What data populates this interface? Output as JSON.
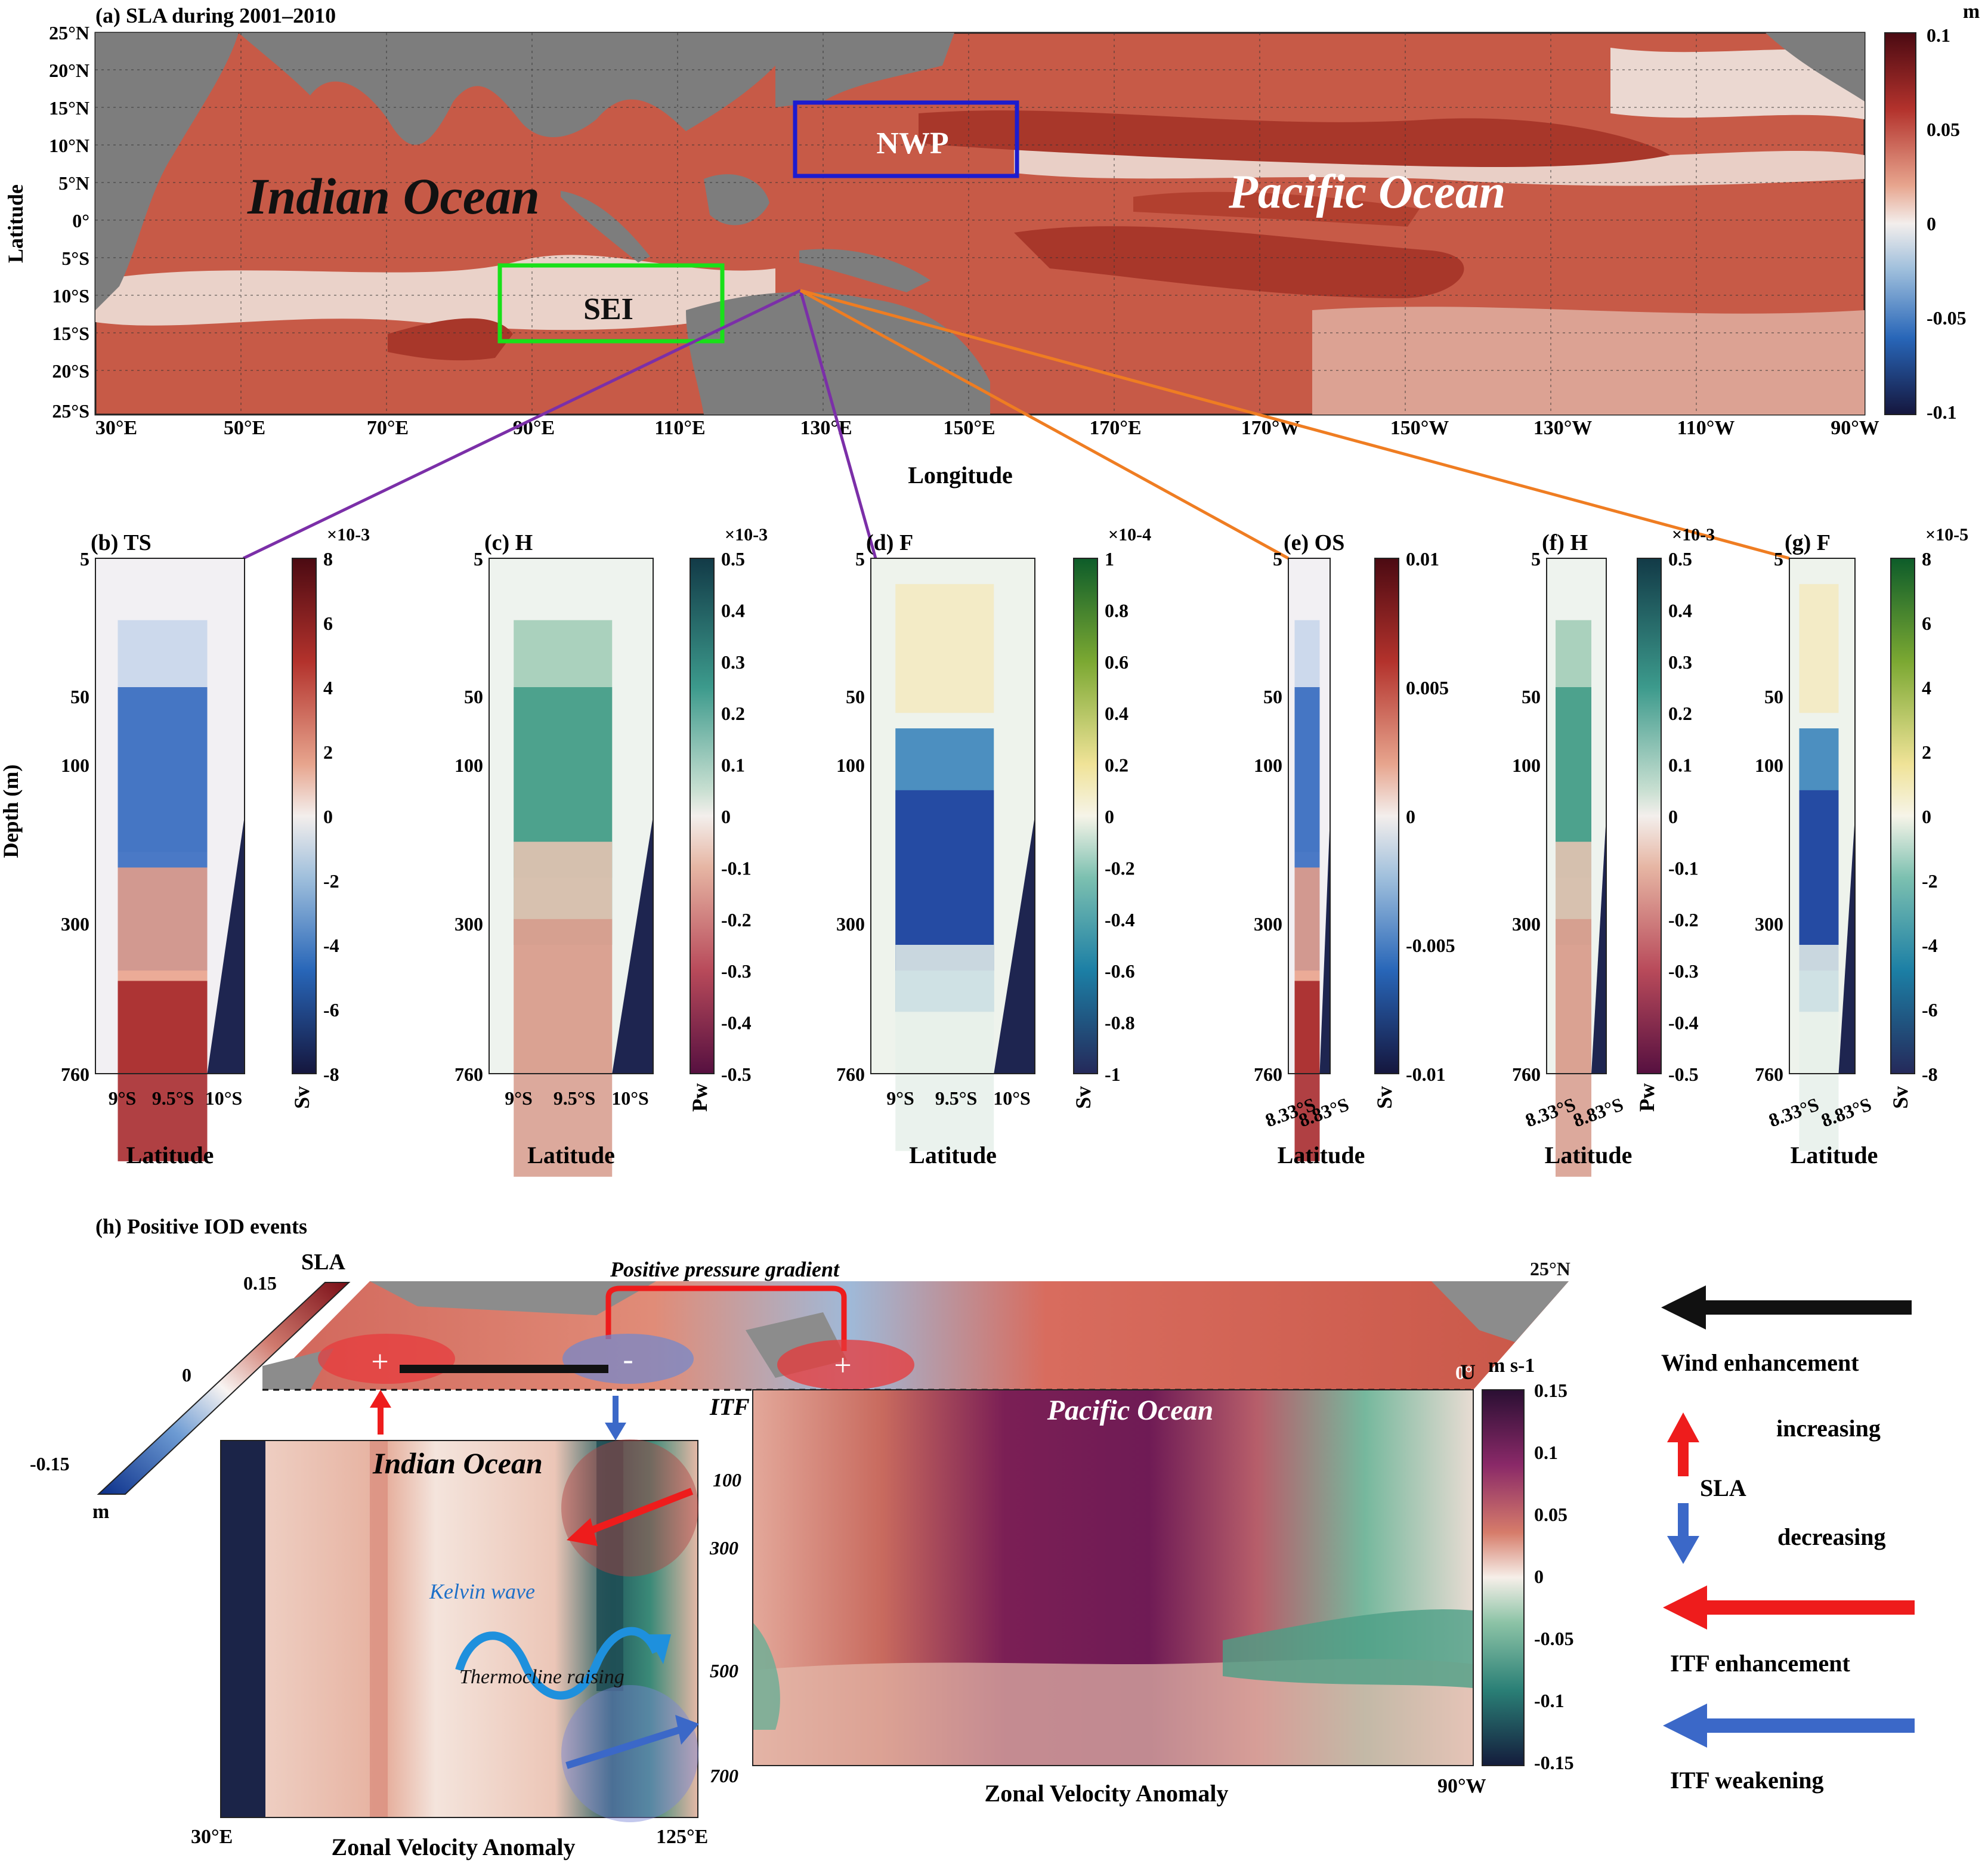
{
  "panel_a": {
    "title": "(a) SLA during 2001–2010",
    "xlabel": "Longitude",
    "ylabel": "Latitude",
    "lat_ticks": [
      "25°N",
      "20°N",
      "15°N",
      "10°N",
      "5°N",
      "0°",
      "5°S",
      "10°S",
      "15°S",
      "20°S",
      "25°S"
    ],
    "lon_ticks": [
      "30°E",
      "50°E",
      "70°E",
      "90°E",
      "110°E",
      "130°E",
      "150°E",
      "170°E",
      "170°W",
      "150°W",
      "130°W",
      "110°W",
      "90°W"
    ],
    "ocean_labels": [
      "Indian Ocean",
      "Pacific Ocean"
    ],
    "boxes": [
      {
        "label": "NWP",
        "lon": [
          125,
          155
        ],
        "lat": [
          6,
          16
        ],
        "color": "#1c1cd0"
      },
      {
        "label": "SEI",
        "lon": [
          85,
          116
        ],
        "lat": [
          -16,
          -6
        ],
        "color": "#19e019"
      }
    ],
    "colorbar": {
      "unit": "m",
      "ticks": [
        "0.1",
        "0.05",
        "0",
        "-0.05",
        "-0.1"
      ],
      "range": [
        -0.1,
        0.1
      ]
    },
    "colors": {
      "land": "#7d7d7d",
      "positive": "#c8543c",
      "strong": "#a8372a",
      "neutral": "#eadcd6"
    }
  },
  "section_panels": [
    {
      "label": "(b) TS",
      "xticks": [
        "9°S",
        "9.5°S",
        "10°S"
      ],
      "cb_exp": "×10-3",
      "cb_unit": "Sv",
      "cb_ticks": [
        "8",
        "6",
        "4",
        "2",
        "0",
        "-2",
        "-4",
        "-6",
        "-8"
      ],
      "cmap": "rdbu"
    },
    {
      "label": "(c) H",
      "xticks": [
        "9°S",
        "9.5°S",
        "10°S"
      ],
      "cb_exp": "×10-3",
      "cb_unit": "Pw",
      "cb_ticks": [
        "0.5",
        "0.4",
        "0.3",
        "0.2",
        "0.1",
        "0",
        "-0.1",
        "-0.2",
        "-0.3",
        "-0.4",
        "-0.5"
      ],
      "cmap": "curl"
    },
    {
      "label": "(d) F",
      "xticks": [
        "9°S",
        "9.5°S",
        "10°S"
      ],
      "cb_exp": "×10-4",
      "cb_unit": "Sv",
      "cb_ticks": [
        "1",
        "0.8",
        "0.6",
        "0.4",
        "0.2",
        "0",
        "-0.2",
        "-0.4",
        "-0.6",
        "-0.8",
        "-1"
      ],
      "cmap": "deep"
    },
    {
      "label": "(e) OS",
      "xticks": [
        "8.33°S",
        "8.83°S"
      ],
      "cb_exp": "",
      "cb_unit": "Sv",
      "cb_ticks": [
        "0.01",
        "0.005",
        "0",
        "-0.005",
        "-0.01"
      ],
      "cmap": "rdbu"
    },
    {
      "label": "(f) H",
      "xticks": [
        "8.33°S",
        "8.83°S"
      ],
      "cb_exp": "×10-3",
      "cb_unit": "Pw",
      "cb_ticks": [
        "0.5",
        "0.4",
        "0.3",
        "0.2",
        "0.1",
        "0",
        "-0.1",
        "-0.2",
        "-0.3",
        "-0.4",
        "-0.5"
      ],
      "cmap": "curl"
    },
    {
      "label": "(g) F",
      "xticks": [
        "8.33°S",
        "8.83°S"
      ],
      "cb_exp": "×10-5",
      "cb_unit": "Sv",
      "cb_ticks": [
        "8",
        "6",
        "4",
        "2",
        "0",
        "-2",
        "-4",
        "-6",
        "-8"
      ],
      "cmap": "deep"
    }
  ],
  "sections_common": {
    "ylabel": "Depth (m)",
    "xlabel": "Latitude",
    "depth_ticks": [
      "5",
      "50",
      "100",
      "300",
      "760"
    ]
  },
  "panel_h": {
    "title": "(h) Positive IOD events",
    "sla_bar": {
      "label": "SLA",
      "unit": "m",
      "ticks": [
        "0.15",
        "0",
        "-0.15"
      ]
    },
    "pressure_label": "Positive pressure gradient",
    "lat_north": "25°N",
    "equator": "0°",
    "u_label": "U",
    "u_unit": "m s-1",
    "u_ticks": [
      "0.15",
      "0.1",
      "0.05",
      "0",
      "-0.05",
      "-0.1",
      "-0.15"
    ],
    "itf": "ITF",
    "indian": "Indian Ocean",
    "pacific": "Pacific Ocean",
    "kelvin": "Kelvin wave",
    "thermocline": "Thermocline raising",
    "depth_ticks": [
      "100",
      "300",
      "500",
      "700"
    ],
    "left_lon": [
      "30°E",
      "125°E"
    ],
    "right_lon": "90°W",
    "xlabel": "Zonal Velocity Anomaly",
    "plus": "+",
    "minus": "-"
  },
  "legend": {
    "wind": "Wind enhancement",
    "increasing": "increasing",
    "sla": "SLA",
    "decreasing": "decreasing",
    "itf_enh": "ITF enhancement",
    "itf_weak": "ITF weakening"
  }
}
